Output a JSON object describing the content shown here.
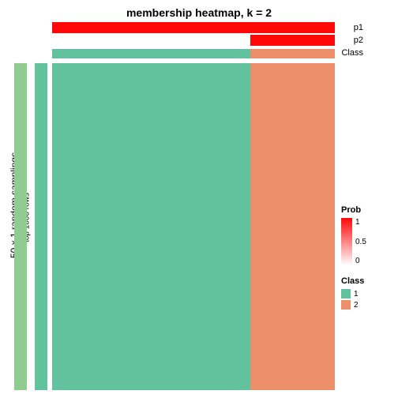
{
  "title": "membership heatmap, k = 2",
  "left_labels": {
    "outer": "50 x 1 random samplings",
    "inner": "top 1000 rows"
  },
  "left_strip_colors": {
    "outer": "#90cb90",
    "inner": "#62c29e"
  },
  "annotation_rows": {
    "p1": {
      "label": "p1",
      "segments": [
        {
          "frac": 1.0,
          "color": "#ff0808"
        }
      ]
    },
    "p2": {
      "label": "p2",
      "segments": [
        {
          "frac": 0.7,
          "color": "#ffffff"
        },
        {
          "frac": 0.3,
          "color": "#ff0808"
        }
      ]
    },
    "class": {
      "label": "Class",
      "segments": [
        {
          "frac": 0.7,
          "color": "#62c29e"
        },
        {
          "frac": 0.3,
          "color": "#ee8f6c"
        }
      ]
    }
  },
  "heatmap": {
    "columns": [
      {
        "frac": 0.7,
        "color": "#62c29e"
      },
      {
        "frac": 0.3,
        "color": "#ee8f6c"
      }
    ]
  },
  "legend_prob": {
    "title": "Prob",
    "gradient_top": "#ff0808",
    "gradient_bottom": "#ffffff",
    "ticks": [
      "1",
      "0.5",
      "0"
    ]
  },
  "legend_class": {
    "title": "Class",
    "items": [
      {
        "label": "1",
        "color": "#62c29e"
      },
      {
        "label": "2",
        "color": "#ee8f6c"
      }
    ]
  },
  "background_color": "#ffffff"
}
